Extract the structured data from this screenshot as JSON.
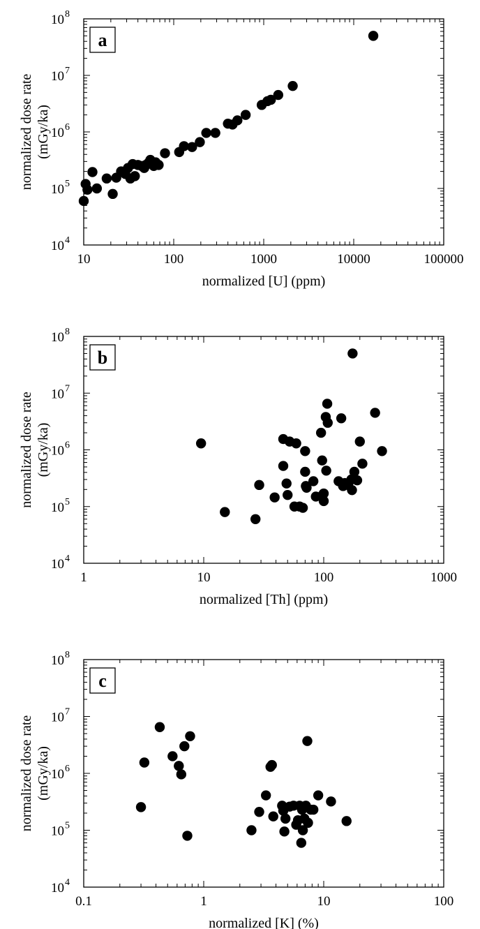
{
  "chart_data": [
    {
      "type": "scatter",
      "panel_label": "a",
      "xlabel": "normalized [U] (ppm)",
      "ylabel": "normalized dose rate",
      "ylabel_unit": "(mGy/ka)",
      "xscale": "log",
      "yscale": "log",
      "xlim": [
        10,
        100000
      ],
      "ylim": [
        10000,
        100000000
      ],
      "x_ticks": [
        "10",
        "100",
        "1000",
        "10000",
        "100000"
      ],
      "y_ticks": [
        {
          "base": "10",
          "exp": "4"
        },
        {
          "base": "10",
          "exp": "5"
        },
        {
          "base": "10",
          "exp": "6"
        },
        {
          "base": "10",
          "exp": "7"
        },
        {
          "base": "10",
          "exp": "8"
        }
      ],
      "marker_color": "#000000",
      "points": [
        [
          10,
          60000
        ],
        [
          10.5,
          120000
        ],
        [
          11,
          95000
        ],
        [
          12.5,
          195000
        ],
        [
          14,
          100000
        ],
        [
          18,
          150000
        ],
        [
          21,
          80000
        ],
        [
          23,
          155000
        ],
        [
          26,
          200000
        ],
        [
          29,
          180000
        ],
        [
          31,
          230000
        ],
        [
          33,
          150000
        ],
        [
          35,
          270000
        ],
        [
          37,
          165000
        ],
        [
          40,
          260000
        ],
        [
          44,
          250000
        ],
        [
          47,
          230000
        ],
        [
          49,
          260000
        ],
        [
          52,
          280000
        ],
        [
          55,
          320000
        ],
        [
          60,
          250000
        ],
        [
          63,
          290000
        ],
        [
          68,
          260000
        ],
        [
          80,
          420000
        ],
        [
          115,
          440000
        ],
        [
          130,
          560000
        ],
        [
          160,
          540000
        ],
        [
          195,
          660000
        ],
        [
          230,
          960000
        ],
        [
          290,
          960000
        ],
        [
          400,
          1400000
        ],
        [
          450,
          1350000
        ],
        [
          510,
          1600000
        ],
        [
          630,
          2000000
        ],
        [
          950,
          3000000
        ],
        [
          1100,
          3500000
        ],
        [
          1200,
          3700000
        ],
        [
          1450,
          4500000
        ],
        [
          2100,
          6500000
        ],
        [
          16500,
          50000000
        ]
      ]
    },
    {
      "type": "scatter",
      "panel_label": "b",
      "xlabel": "normalized [Th] (ppm)",
      "ylabel": "normalized dose rate",
      "ylabel_unit": "(mGy/ka)",
      "xscale": "log",
      "yscale": "log",
      "xlim": [
        1,
        1000
      ],
      "ylim": [
        10000,
        100000000
      ],
      "x_ticks": [
        "1",
        "10",
        "100",
        "1000"
      ],
      "y_ticks": [
        {
          "base": "10",
          "exp": "4"
        },
        {
          "base": "10",
          "exp": "5"
        },
        {
          "base": "10",
          "exp": "6"
        },
        {
          "base": "10",
          "exp": "7"
        },
        {
          "base": "10",
          "exp": "8"
        }
      ],
      "marker_color": "#000000",
      "points": [
        [
          9.5,
          1300000
        ],
        [
          15,
          80000
        ],
        [
          27,
          60000
        ],
        [
          29,
          240000
        ],
        [
          39,
          145000
        ],
        [
          46,
          1550000
        ],
        [
          46,
          520000
        ],
        [
          49,
          255000
        ],
        [
          50,
          160000
        ],
        [
          52,
          1400000
        ],
        [
          57,
          100000
        ],
        [
          59,
          1300000
        ],
        [
          63,
          100000
        ],
        [
          67,
          95000
        ],
        [
          70,
          950000
        ],
        [
          70,
          410000
        ],
        [
          71,
          230000
        ],
        [
          72,
          215000
        ],
        [
          82,
          280000
        ],
        [
          86,
          150000
        ],
        [
          95,
          2000000
        ],
        [
          97,
          650000
        ],
        [
          98,
          160000
        ],
        [
          100,
          170000
        ],
        [
          100,
          125000
        ],
        [
          104,
          3800000
        ],
        [
          105,
          430000
        ],
        [
          107,
          6500000
        ],
        [
          108,
          3000000
        ],
        [
          133,
          280000
        ],
        [
          140,
          3600000
        ],
        [
          145,
          230000
        ],
        [
          150,
          260000
        ],
        [
          160,
          240000
        ],
        [
          170,
          300000
        ],
        [
          172,
          195000
        ],
        [
          174,
          50000000
        ],
        [
          180,
          410000
        ],
        [
          190,
          290000
        ],
        [
          200,
          1400000
        ],
        [
          210,
          570000
        ],
        [
          268,
          4500000
        ],
        [
          306,
          950000
        ]
      ]
    },
    {
      "type": "scatter",
      "panel_label": "c",
      "xlabel": "normalized [K] (%)",
      "ylabel": "normalized dose rate",
      "ylabel_unit": "(mGy/ka)",
      "xscale": "log",
      "yscale": "log",
      "xlim": [
        0.1,
        100
      ],
      "ylim": [
        10000,
        100000000
      ],
      "x_ticks": [
        "0.1",
        "1",
        "10",
        "100"
      ],
      "y_ticks": [
        {
          "base": "10",
          "exp": "4"
        },
        {
          "base": "10",
          "exp": "5"
        },
        {
          "base": "10",
          "exp": "6"
        },
        {
          "base": "10",
          "exp": "7"
        },
        {
          "base": "10",
          "exp": "8"
        }
      ],
      "marker_color": "#000000",
      "points": [
        [
          0.3,
          255000
        ],
        [
          0.32,
          1550000
        ],
        [
          0.43,
          6500000
        ],
        [
          0.55,
          2000000
        ],
        [
          0.62,
          1350000
        ],
        [
          0.65,
          960000
        ],
        [
          0.69,
          3000000
        ],
        [
          0.73,
          80000
        ],
        [
          0.77,
          4500000
        ],
        [
          2.5,
          100000
        ],
        [
          2.9,
          210000
        ],
        [
          3.3,
          410000
        ],
        [
          3.6,
          1300000
        ],
        [
          3.7,
          1400000
        ],
        [
          3.8,
          175000
        ],
        [
          4.5,
          270000
        ],
        [
          4.6,
          220000
        ],
        [
          4.7,
          95000
        ],
        [
          4.8,
          160000
        ],
        [
          5.2,
          260000
        ],
        [
          5.6,
          270000
        ],
        [
          5.9,
          125000
        ],
        [
          6.1,
          150000
        ],
        [
          6.3,
          270000
        ],
        [
          6.5,
          60000
        ],
        [
          6.6,
          230000
        ],
        [
          6.7,
          100000
        ],
        [
          6.9,
          160000
        ],
        [
          7.1,
          270000
        ],
        [
          7.3,
          3700000
        ],
        [
          7.4,
          135000
        ],
        [
          7.8,
          230000
        ],
        [
          8.2,
          230000
        ],
        [
          9.0,
          410000
        ],
        [
          11.5,
          320000
        ],
        [
          15.5,
          145000
        ]
      ]
    }
  ]
}
